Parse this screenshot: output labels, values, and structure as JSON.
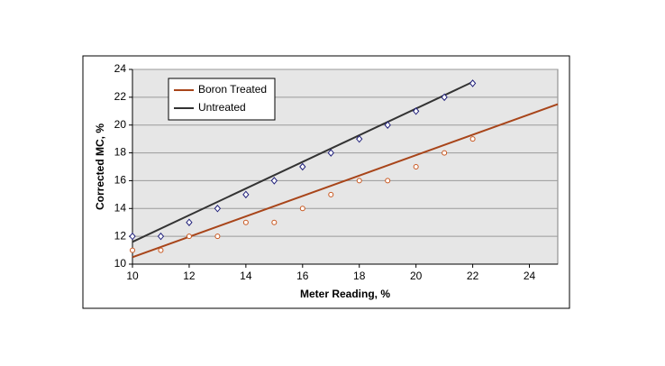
{
  "chart_data": {
    "type": "scatter",
    "x_label": "Meter Reading, %",
    "y_label": "Corrected MC, %",
    "xlim": [
      10,
      25
    ],
    "xticks": [
      10,
      12,
      14,
      16,
      18,
      20,
      22,
      24
    ],
    "ylim": [
      10,
      24
    ],
    "yticks": [
      10,
      12,
      14,
      16,
      18,
      20,
      22,
      24
    ],
    "grid": true,
    "legend": "upper left",
    "series": [
      {
        "name": "Boron Treated",
        "color": "#c8561e",
        "line_color": "#a8451a",
        "marker": "circle",
        "x": [
          10,
          11,
          12,
          13,
          14,
          15,
          16,
          17,
          18,
          19,
          20,
          21,
          22
        ],
        "values": [
          11,
          11,
          12,
          12,
          13,
          13,
          14,
          15,
          16,
          16,
          17,
          18,
          19
        ],
        "trend": {
          "x": [
            10,
            25
          ],
          "values": [
            10.5,
            21.5
          ]
        }
      },
      {
        "name": "Untreated",
        "color": "#1f1f7a",
        "line_color": "#333333",
        "marker": "diamond",
        "x": [
          10,
          11,
          12,
          13,
          14,
          15,
          16,
          17,
          18,
          19,
          20,
          21,
          22
        ],
        "values": [
          12,
          12,
          13,
          14,
          15,
          16,
          17,
          18,
          19,
          20,
          21,
          22,
          23
        ],
        "trend": {
          "x": [
            10,
            22
          ],
          "values": [
            11.6,
            23.1
          ]
        }
      }
    ]
  }
}
